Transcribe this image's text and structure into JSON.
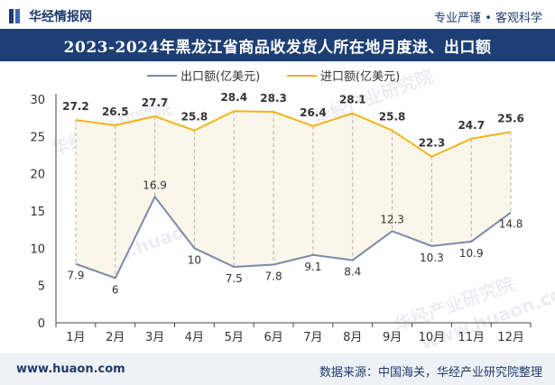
{
  "header": {
    "brand": "华经情报网",
    "tagline": "专业严谨 • 客观科学",
    "title": "2023-2024年黑龙江省商品收发货人所在地月度进、出口额"
  },
  "footer": {
    "website": "www.huaon.com",
    "source": "数据来源：中国海关，华经产业研究院整理"
  },
  "watermarks": [
    "华经产业研究院",
    "www.huaon.com"
  ],
  "colors": {
    "export_line": "#7b8aa6",
    "import_line": "#f2b417",
    "title_bg": "#1d3f76"
  },
  "chart_data": {
    "type": "line",
    "categories": [
      "1月",
      "2月",
      "3月",
      "4月",
      "5月",
      "6月",
      "7月",
      "8月",
      "9月",
      "10月",
      "11月",
      "12月"
    ],
    "series": [
      {
        "name": "出口额(亿美元)",
        "values": [
          7.9,
          6,
          16.9,
          10,
          7.5,
          7.8,
          9.1,
          8.4,
          12.3,
          10.3,
          10.9,
          14.8
        ]
      },
      {
        "name": "进口额(亿美元)",
        "values": [
          27.2,
          26.5,
          27.7,
          25.8,
          28.4,
          28.3,
          26.4,
          28.1,
          25.8,
          22.3,
          24.7,
          25.6
        ]
      }
    ],
    "ylim": [
      0,
      30
    ],
    "yticks": [
      0,
      5,
      10,
      15,
      20,
      25,
      30
    ],
    "legend_position": "top-center",
    "grid": false
  }
}
